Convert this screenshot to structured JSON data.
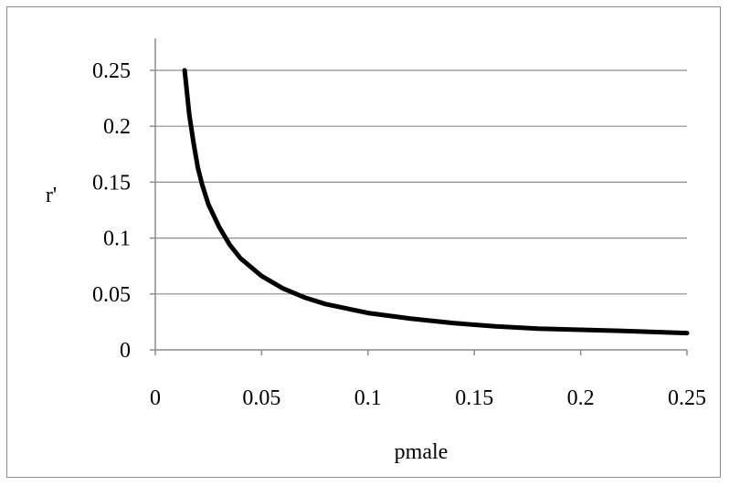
{
  "chart_data": {
    "type": "line",
    "xlabel": "pmale",
    "ylabel": "r'",
    "xlim": [
      0,
      0.25
    ],
    "ylim": [
      0,
      0.25
    ],
    "x_ticks": [
      "0",
      "0.05",
      "0.1",
      "0.15",
      "0.2",
      "0.25"
    ],
    "y_ticks": [
      "0",
      "0.05",
      "0.1",
      "0.15",
      "0.2",
      "0.25"
    ],
    "grid": "horizontal",
    "legend": "none",
    "series": [
      {
        "color": "#000000",
        "points": [
          [
            0.0138,
            0.25
          ],
          [
            0.016,
            0.21
          ],
          [
            0.018,
            0.185
          ],
          [
            0.02,
            0.163
          ],
          [
            0.022,
            0.148
          ],
          [
            0.025,
            0.13
          ],
          [
            0.03,
            0.11
          ],
          [
            0.035,
            0.094
          ],
          [
            0.04,
            0.082
          ],
          [
            0.05,
            0.066
          ],
          [
            0.06,
            0.055
          ],
          [
            0.07,
            0.047
          ],
          [
            0.08,
            0.041
          ],
          [
            0.09,
            0.037
          ],
          [
            0.1,
            0.033
          ],
          [
            0.12,
            0.028
          ],
          [
            0.14,
            0.024
          ],
          [
            0.16,
            0.021
          ],
          [
            0.18,
            0.019
          ],
          [
            0.2,
            0.018
          ],
          [
            0.22,
            0.017
          ],
          [
            0.25,
            0.015
          ]
        ]
      }
    ]
  }
}
